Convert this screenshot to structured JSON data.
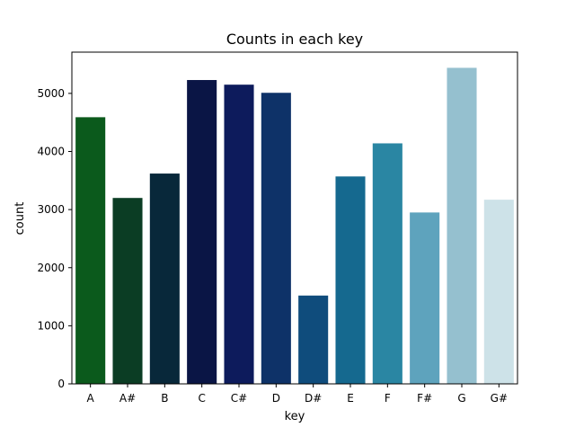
{
  "chart_data": {
    "type": "bar",
    "title": "Counts in each key",
    "xlabel": "key",
    "ylabel": "count",
    "categories": [
      "A",
      "A#",
      "B",
      "C",
      "C#",
      "D",
      "D#",
      "E",
      "F",
      "F#",
      "G",
      "G#"
    ],
    "values": [
      4590,
      3200,
      3620,
      5230,
      5150,
      5010,
      1520,
      3570,
      4140,
      2950,
      5440,
      3170
    ],
    "colors": [
      "#0b5a1c",
      "#0b3d24",
      "#08283a",
      "#0a1545",
      "#0d1b5c",
      "#0e3268",
      "#0f4c7c",
      "#15698f",
      "#2a86a3",
      "#5ea3bd",
      "#95c0cf",
      "#cde2e8"
    ],
    "ylim": [
      0,
      5710
    ],
    "yticks": [
      0,
      1000,
      2000,
      3000,
      4000,
      5000
    ],
    "grid": false,
    "legend": "none"
  }
}
